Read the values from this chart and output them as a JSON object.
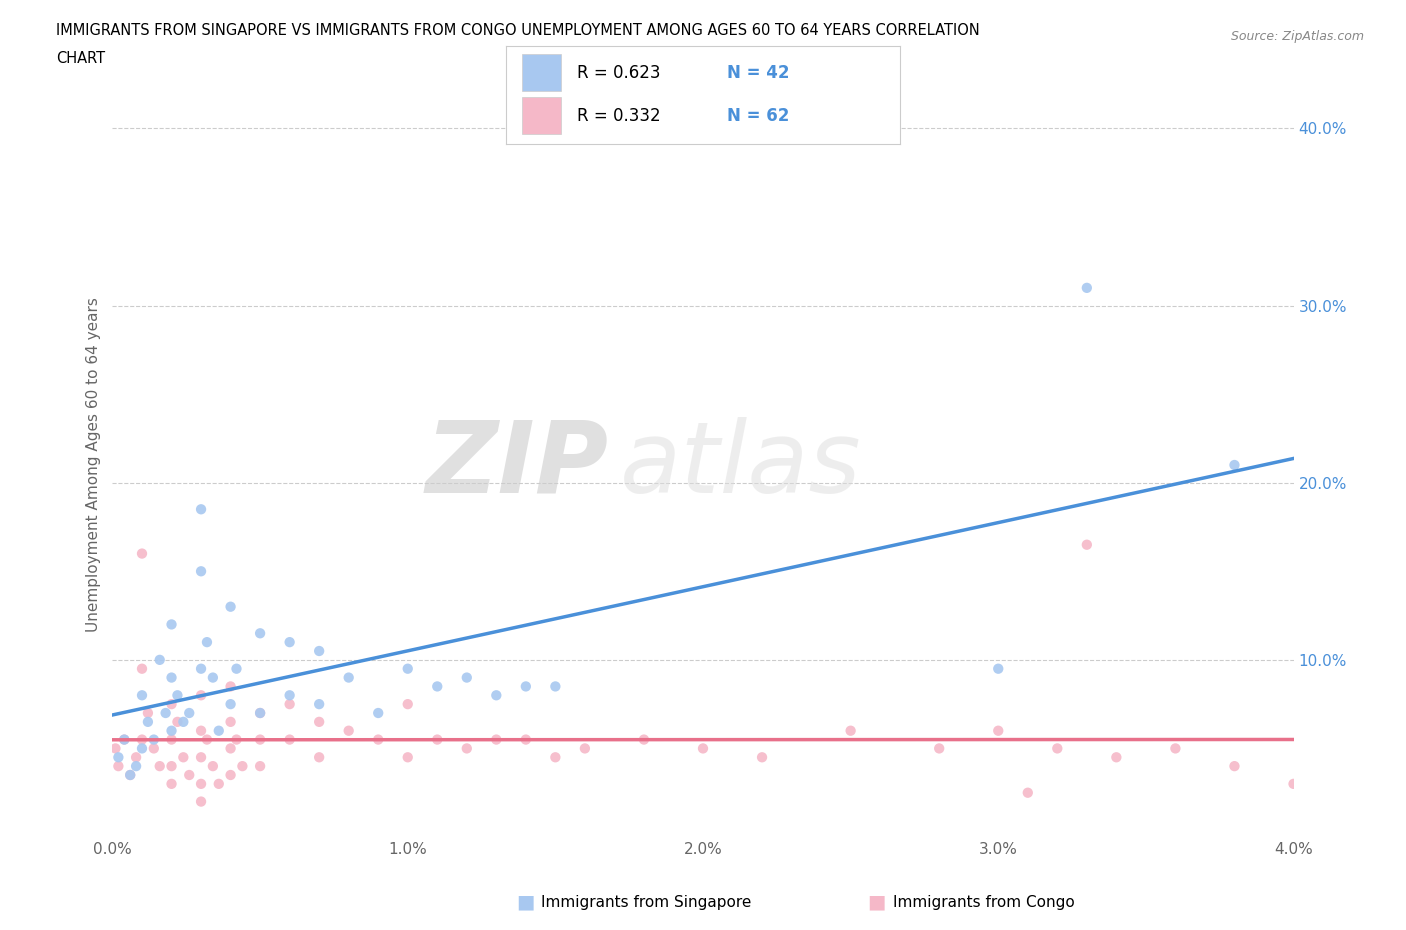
{
  "title_line1": "IMMIGRANTS FROM SINGAPORE VS IMMIGRANTS FROM CONGO UNEMPLOYMENT AMONG AGES 60 TO 64 YEARS CORRELATION",
  "title_line2": "CHART",
  "source": "Source: ZipAtlas.com",
  "xlabel": "",
  "ylabel": "Unemployment Among Ages 60 to 64 years",
  "xlim": [
    0.0,
    0.04
  ],
  "ylim": [
    0.0,
    0.42
  ],
  "xtick_labels": [
    "0.0%",
    "1.0%",
    "2.0%",
    "3.0%",
    "4.0%"
  ],
  "xtick_values": [
    0.0,
    0.01,
    0.02,
    0.03,
    0.04
  ],
  "ytick_labels": [
    "10.0%",
    "20.0%",
    "30.0%",
    "40.0%"
  ],
  "ytick_values": [
    0.1,
    0.2,
    0.3,
    0.4
  ],
  "singapore_color": "#a8c8f0",
  "congo_color": "#f5b8c8",
  "singapore_line_color": "#4a90d9",
  "congo_line_color": "#e8708a",
  "R_singapore": 0.623,
  "N_singapore": 42,
  "R_congo": 0.332,
  "N_congo": 62,
  "singapore_x": [
    0.0002,
    0.0004,
    0.0006,
    0.0008,
    0.001,
    0.001,
    0.0012,
    0.0014,
    0.0016,
    0.0018,
    0.002,
    0.002,
    0.002,
    0.0022,
    0.0024,
    0.0026,
    0.003,
    0.003,
    0.003,
    0.0032,
    0.0034,
    0.0036,
    0.004,
    0.004,
    0.0042,
    0.005,
    0.005,
    0.006,
    0.006,
    0.007,
    0.007,
    0.008,
    0.009,
    0.01,
    0.011,
    0.012,
    0.013,
    0.014,
    0.015,
    0.03,
    0.033,
    0.038
  ],
  "singapore_y": [
    0.045,
    0.055,
    0.035,
    0.04,
    0.08,
    0.05,
    0.065,
    0.055,
    0.1,
    0.07,
    0.12,
    0.09,
    0.06,
    0.08,
    0.065,
    0.07,
    0.185,
    0.15,
    0.095,
    0.11,
    0.09,
    0.06,
    0.13,
    0.075,
    0.095,
    0.115,
    0.07,
    0.11,
    0.08,
    0.105,
    0.075,
    0.09,
    0.07,
    0.095,
    0.085,
    0.09,
    0.08,
    0.085,
    0.085,
    0.095,
    0.31,
    0.21
  ],
  "congo_x": [
    0.0001,
    0.0002,
    0.0004,
    0.0006,
    0.0008,
    0.001,
    0.001,
    0.001,
    0.0012,
    0.0014,
    0.0016,
    0.002,
    0.002,
    0.002,
    0.002,
    0.0022,
    0.0024,
    0.0026,
    0.003,
    0.003,
    0.003,
    0.003,
    0.003,
    0.0032,
    0.0034,
    0.0036,
    0.004,
    0.004,
    0.004,
    0.004,
    0.0042,
    0.0044,
    0.005,
    0.005,
    0.005,
    0.006,
    0.006,
    0.007,
    0.007,
    0.008,
    0.009,
    0.01,
    0.01,
    0.011,
    0.012,
    0.013,
    0.014,
    0.015,
    0.016,
    0.018,
    0.02,
    0.022,
    0.025,
    0.028,
    0.03,
    0.032,
    0.034,
    0.036,
    0.038,
    0.04,
    0.033,
    0.031
  ],
  "congo_y": [
    0.05,
    0.04,
    0.055,
    0.035,
    0.045,
    0.16,
    0.095,
    0.055,
    0.07,
    0.05,
    0.04,
    0.075,
    0.055,
    0.04,
    0.03,
    0.065,
    0.045,
    0.035,
    0.08,
    0.06,
    0.045,
    0.03,
    0.02,
    0.055,
    0.04,
    0.03,
    0.085,
    0.065,
    0.05,
    0.035,
    0.055,
    0.04,
    0.07,
    0.055,
    0.04,
    0.075,
    0.055,
    0.065,
    0.045,
    0.06,
    0.055,
    0.075,
    0.045,
    0.055,
    0.05,
    0.055,
    0.055,
    0.045,
    0.05,
    0.055,
    0.05,
    0.045,
    0.06,
    0.05,
    0.06,
    0.05,
    0.045,
    0.05,
    0.04,
    0.03,
    0.165,
    0.025
  ]
}
